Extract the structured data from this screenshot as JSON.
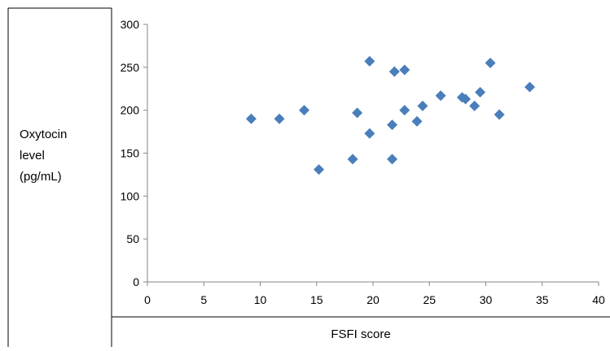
{
  "chart_data": {
    "type": "scatter",
    "title": "",
    "xlabel": "FSFI score",
    "ylabel_lines": [
      "Oxytocin",
      "level",
      "(pg/mL)"
    ],
    "xlim": [
      0,
      40
    ],
    "ylim": [
      0,
      300
    ],
    "x_ticks": [
      "0",
      "5",
      "10",
      "15",
      "20",
      "25",
      "30",
      "35",
      "40"
    ],
    "y_ticks": [
      "0",
      "50",
      "100",
      "150",
      "200",
      "250",
      "300"
    ],
    "grid": false,
    "legend": "none",
    "marker": "diamond",
    "marker_color": "#4A7EBB",
    "points": [
      {
        "x": 9.2,
        "y": 190
      },
      {
        "x": 11.7,
        "y": 190
      },
      {
        "x": 13.9,
        "y": 200
      },
      {
        "x": 15.2,
        "y": 131
      },
      {
        "x": 18.2,
        "y": 143
      },
      {
        "x": 18.6,
        "y": 197
      },
      {
        "x": 19.7,
        "y": 257
      },
      {
        "x": 19.7,
        "y": 173
      },
      {
        "x": 21.7,
        "y": 183
      },
      {
        "x": 21.7,
        "y": 143
      },
      {
        "x": 21.9,
        "y": 245
      },
      {
        "x": 22.8,
        "y": 247
      },
      {
        "x": 22.8,
        "y": 200
      },
      {
        "x": 23.9,
        "y": 187
      },
      {
        "x": 24.4,
        "y": 205
      },
      {
        "x": 26.0,
        "y": 217
      },
      {
        "x": 27.9,
        "y": 215
      },
      {
        "x": 28.2,
        "y": 213
      },
      {
        "x": 29.0,
        "y": 205
      },
      {
        "x": 29.5,
        "y": 221
      },
      {
        "x": 30.4,
        "y": 255
      },
      {
        "x": 31.2,
        "y": 195
      },
      {
        "x": 33.9,
        "y": 227
      }
    ]
  }
}
